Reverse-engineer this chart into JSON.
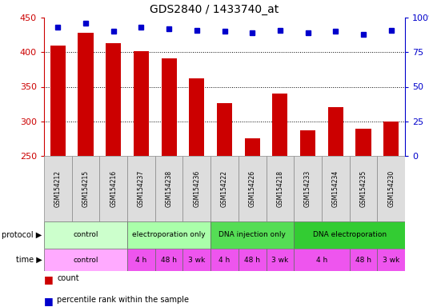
{
  "title": "GDS2840 / 1433740_at",
  "samples": [
    "GSM154212",
    "GSM154215",
    "GSM154216",
    "GSM154237",
    "GSM154238",
    "GSM154236",
    "GSM154222",
    "GSM154226",
    "GSM154218",
    "GSM154233",
    "GSM154234",
    "GSM154235",
    "GSM154230"
  ],
  "counts": [
    410,
    428,
    413,
    401,
    391,
    362,
    326,
    275,
    340,
    287,
    320,
    289,
    300
  ],
  "percentiles": [
    93,
    96,
    90,
    93,
    92,
    91,
    90,
    89,
    91,
    89,
    90,
    88,
    91
  ],
  "ylim_left": [
    250,
    450
  ],
  "ylim_right": [
    0,
    100
  ],
  "yticks_left": [
    250,
    300,
    350,
    400,
    450
  ],
  "yticks_right": [
    0,
    25,
    50,
    75,
    100
  ],
  "bar_color": "#cc0000",
  "dot_color": "#0000cc",
  "protocol_row": [
    {
      "label": "control",
      "start": 0,
      "end": 3,
      "color": "#ccffcc"
    },
    {
      "label": "electroporation only",
      "start": 3,
      "end": 6,
      "color": "#aaffaa"
    },
    {
      "label": "DNA injection only",
      "start": 6,
      "end": 9,
      "color": "#55dd55"
    },
    {
      "label": "DNA electroporation",
      "start": 9,
      "end": 13,
      "color": "#33cc33"
    }
  ],
  "time_row": [
    {
      "label": "control",
      "start": 0,
      "end": 3
    },
    {
      "label": "4 h",
      "start": 3,
      "end": 4
    },
    {
      "label": "48 h",
      "start": 4,
      "end": 5
    },
    {
      "label": "3 wk",
      "start": 5,
      "end": 6
    },
    {
      "label": "4 h",
      "start": 6,
      "end": 7
    },
    {
      "label": "48 h",
      "start": 7,
      "end": 8
    },
    {
      "label": "3 wk",
      "start": 8,
      "end": 9
    },
    {
      "label": "4 h",
      "start": 9,
      "end": 11
    },
    {
      "label": "48 h",
      "start": 11,
      "end": 12
    },
    {
      "label": "3 wk",
      "start": 12,
      "end": 13
    }
  ],
  "time_color_light": "#ffaaff",
  "time_color_dark": "#ee55ee",
  "left_axis_color": "#cc0000",
  "right_axis_color": "#0000cc",
  "grid_yticks": [
    300,
    350,
    400
  ],
  "tick_fontsize": 8,
  "sample_fontsize": 5.5,
  "row_fontsize": 6.5,
  "legend_fontsize": 7,
  "title_fontsize": 10
}
